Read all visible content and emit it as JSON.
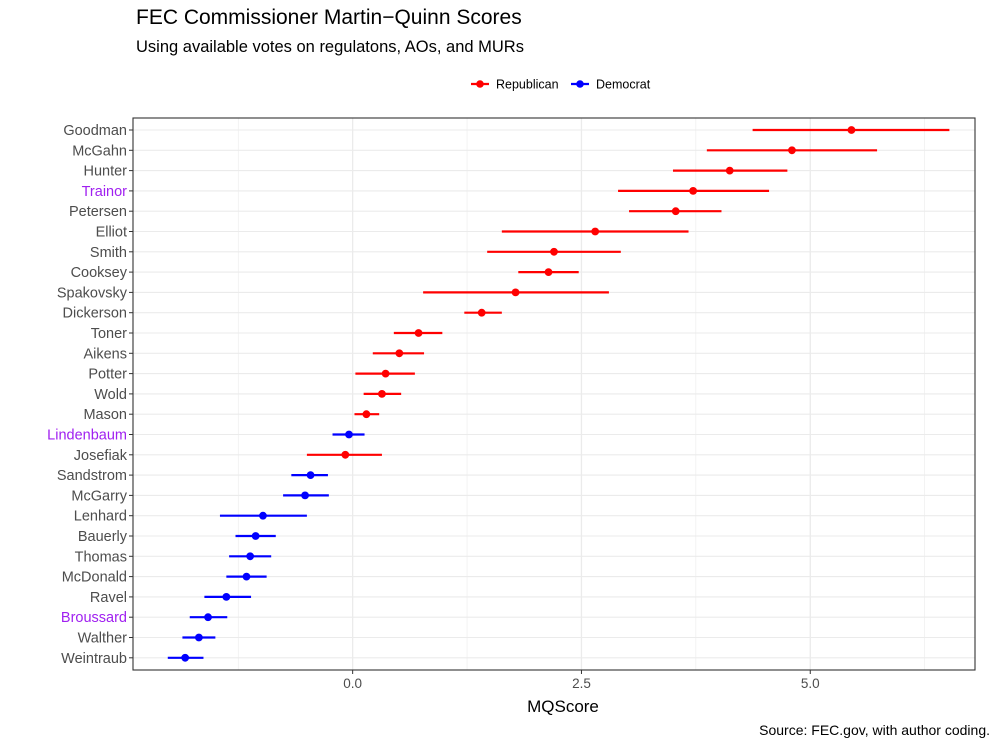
{
  "header": {
    "title": "FEC Commissioner Martin−Quinn Scores",
    "subtitle": "Using available votes on regulatons, AOs, and MURs"
  },
  "caption": "Source: FEC.gov, with author coding.",
  "colors": {
    "republican": "#ff0000",
    "democrat": "#0000ff",
    "independent_label": "#a020f0",
    "default_label": "#4d4d4d",
    "grid": "#ebebeb"
  },
  "chart_data": {
    "type": "scatter",
    "style": "point-with-horizontal-interval",
    "xlabel": "MQScore",
    "ylabel": "",
    "xlim": [
      -2.4,
      6.8
    ],
    "xticks": [
      {
        "value": 0,
        "label": "0.0"
      },
      {
        "value": 2.5,
        "label": "2.5"
      },
      {
        "value": 5,
        "label": "5.0"
      }
    ],
    "grid": true,
    "legend": {
      "position": "top",
      "entries": [
        {
          "name": "Republican",
          "color": "#ff0000"
        },
        {
          "name": "Democrat",
          "color": "#0000ff"
        }
      ]
    },
    "series": [
      {
        "name": "Republican",
        "color": "#ff0000"
      },
      {
        "name": "Democrat",
        "color": "#0000ff"
      }
    ],
    "points": [
      {
        "name": "Goodman",
        "party": "Republican",
        "label_color": "default",
        "score": 5.45,
        "low": 4.37,
        "high": 6.52
      },
      {
        "name": "McGahn",
        "party": "Republican",
        "label_color": "default",
        "score": 4.8,
        "low": 3.87,
        "high": 5.73
      },
      {
        "name": "Hunter",
        "party": "Republican",
        "label_color": "default",
        "score": 4.12,
        "low": 3.5,
        "high": 4.75
      },
      {
        "name": "Trainor",
        "party": "Republican",
        "label_color": "independent",
        "score": 3.72,
        "low": 2.9,
        "high": 4.55
      },
      {
        "name": "Petersen",
        "party": "Republican",
        "label_color": "default",
        "score": 3.53,
        "low": 3.02,
        "high": 4.03
      },
      {
        "name": "Elliot",
        "party": "Republican",
        "label_color": "default",
        "score": 2.65,
        "low": 1.63,
        "high": 3.67
      },
      {
        "name": "Smith",
        "party": "Republican",
        "label_color": "default",
        "score": 2.2,
        "low": 1.47,
        "high": 2.93
      },
      {
        "name": "Cooksey",
        "party": "Republican",
        "label_color": "default",
        "score": 2.14,
        "low": 1.81,
        "high": 2.47
      },
      {
        "name": "Spakovsky",
        "party": "Republican",
        "label_color": "default",
        "score": 1.78,
        "low": 0.77,
        "high": 2.8
      },
      {
        "name": "Dickerson",
        "party": "Republican",
        "label_color": "default",
        "score": 1.41,
        "low": 1.22,
        "high": 1.63
      },
      {
        "name": "Toner",
        "party": "Republican",
        "label_color": "default",
        "score": 0.72,
        "low": 0.45,
        "high": 0.98
      },
      {
        "name": "Aikens",
        "party": "Republican",
        "label_color": "default",
        "score": 0.51,
        "low": 0.22,
        "high": 0.78
      },
      {
        "name": "Potter",
        "party": "Republican",
        "label_color": "default",
        "score": 0.36,
        "low": 0.03,
        "high": 0.68
      },
      {
        "name": "Wold",
        "party": "Republican",
        "label_color": "default",
        "score": 0.32,
        "low": 0.12,
        "high": 0.53
      },
      {
        "name": "Mason",
        "party": "Republican",
        "label_color": "default",
        "score": 0.15,
        "low": 0.02,
        "high": 0.29
      },
      {
        "name": "Lindenbaum",
        "party": "Democrat",
        "label_color": "independent",
        "score": -0.04,
        "low": -0.22,
        "high": 0.13
      },
      {
        "name": "Josefiak",
        "party": "Republican",
        "label_color": "default",
        "score": -0.08,
        "low": -0.5,
        "high": 0.32
      },
      {
        "name": "Sandstrom",
        "party": "Democrat",
        "label_color": "default",
        "score": -0.46,
        "low": -0.67,
        "high": -0.27
      },
      {
        "name": "McGarry",
        "party": "Democrat",
        "label_color": "default",
        "score": -0.52,
        "low": -0.76,
        "high": -0.26
      },
      {
        "name": "Lenhard",
        "party": "Democrat",
        "label_color": "default",
        "score": -0.98,
        "low": -1.45,
        "high": -0.5
      },
      {
        "name": "Bauerly",
        "party": "Democrat",
        "label_color": "default",
        "score": -1.06,
        "low": -1.28,
        "high": -0.84
      },
      {
        "name": "Thomas",
        "party": "Democrat",
        "label_color": "default",
        "score": -1.12,
        "low": -1.35,
        "high": -0.89
      },
      {
        "name": "McDonald",
        "party": "Democrat",
        "label_color": "default",
        "score": -1.16,
        "low": -1.38,
        "high": -0.94
      },
      {
        "name": "Ravel",
        "party": "Democrat",
        "label_color": "default",
        "score": -1.38,
        "low": -1.62,
        "high": -1.11
      },
      {
        "name": "Broussard",
        "party": "Democrat",
        "label_color": "independent",
        "score": -1.58,
        "low": -1.78,
        "high": -1.37
      },
      {
        "name": "Walther",
        "party": "Democrat",
        "label_color": "default",
        "score": -1.68,
        "low": -1.86,
        "high": -1.5
      },
      {
        "name": "Weintraub",
        "party": "Democrat",
        "label_color": "default",
        "score": -1.83,
        "low": -2.02,
        "high": -1.63
      }
    ]
  }
}
